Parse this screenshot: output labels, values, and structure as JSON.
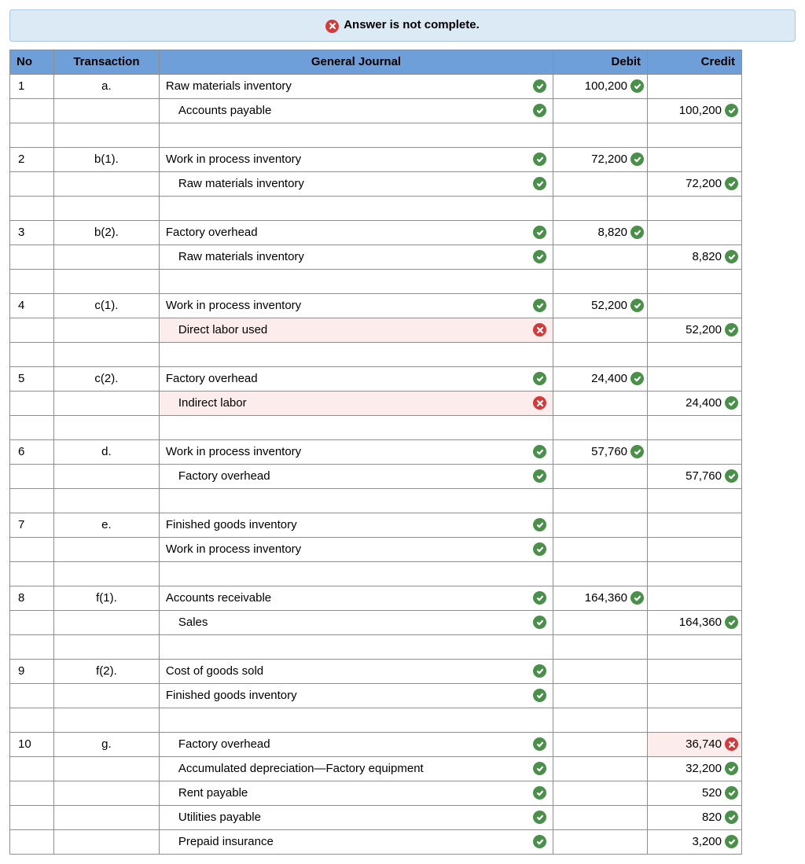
{
  "banner": {
    "text": "Answer is not complete."
  },
  "headers": {
    "no": "No",
    "transaction": "Transaction",
    "gj": "General Journal",
    "debit": "Debit",
    "credit": "Credit"
  },
  "colors": {
    "banner_bg": "#dceaf5",
    "banner_border": "#a9c7dd",
    "header_bg": "#6f9fd8",
    "cell_border": "#8f8f8f",
    "check_bg": "#4a8f4a",
    "x_bg": "#d23b3b",
    "error_bg": "#fdecec"
  },
  "rows": [
    {
      "no": "1",
      "trans": "a.",
      "gj": "Raw materials inventory",
      "indent": 0,
      "gjIcon": "check",
      "debit": "100,200",
      "debitIcon": "check",
      "credit": "",
      "creditIcon": ""
    },
    {
      "no": "",
      "trans": "",
      "gj": "Accounts payable",
      "indent": 1,
      "gjIcon": "check",
      "debit": "",
      "debitIcon": "",
      "credit": "100,200",
      "creditIcon": "check"
    },
    {
      "no": "",
      "trans": "",
      "gj": "",
      "indent": 0,
      "gjIcon": "",
      "debit": "",
      "debitIcon": "",
      "credit": "",
      "creditIcon": ""
    },
    {
      "no": "2",
      "trans": "b(1).",
      "gj": "Work in process inventory",
      "indent": 0,
      "gjIcon": "check",
      "debit": "72,200",
      "debitIcon": "check",
      "credit": "",
      "creditIcon": ""
    },
    {
      "no": "",
      "trans": "",
      "gj": "Raw materials inventory",
      "indent": 1,
      "gjIcon": "check",
      "debit": "",
      "debitIcon": "",
      "credit": "72,200",
      "creditIcon": "check"
    },
    {
      "no": "",
      "trans": "",
      "gj": "",
      "indent": 0,
      "gjIcon": "",
      "debit": "",
      "debitIcon": "",
      "credit": "",
      "creditIcon": ""
    },
    {
      "no": "3",
      "trans": "b(2).",
      "gj": "Factory overhead",
      "indent": 0,
      "gjIcon": "check",
      "debit": "8,820",
      "debitIcon": "check",
      "credit": "",
      "creditIcon": ""
    },
    {
      "no": "",
      "trans": "",
      "gj": "Raw materials inventory",
      "indent": 1,
      "gjIcon": "check",
      "debit": "",
      "debitIcon": "",
      "credit": "8,820",
      "creditIcon": "check"
    },
    {
      "no": "",
      "trans": "",
      "gj": "",
      "indent": 0,
      "gjIcon": "",
      "debit": "",
      "debitIcon": "",
      "credit": "",
      "creditIcon": ""
    },
    {
      "no": "4",
      "trans": "c(1).",
      "gj": "Work in process inventory",
      "indent": 0,
      "gjIcon": "check",
      "debit": "52,200",
      "debitIcon": "check",
      "credit": "",
      "creditIcon": ""
    },
    {
      "no": "",
      "trans": "",
      "gj": "Direct labor used",
      "indent": 1,
      "gjIcon": "x",
      "gjError": true,
      "debit": "",
      "debitIcon": "",
      "credit": "52,200",
      "creditIcon": "check"
    },
    {
      "no": "",
      "trans": "",
      "gj": "",
      "indent": 0,
      "gjIcon": "",
      "debit": "",
      "debitIcon": "",
      "credit": "",
      "creditIcon": ""
    },
    {
      "no": "5",
      "trans": "c(2).",
      "gj": "Factory overhead",
      "indent": 0,
      "gjIcon": "check",
      "debit": "24,400",
      "debitIcon": "check",
      "credit": "",
      "creditIcon": ""
    },
    {
      "no": "",
      "trans": "",
      "gj": "Indirect labor",
      "indent": 1,
      "gjIcon": "x",
      "gjError": true,
      "debit": "",
      "debitIcon": "",
      "credit": "24,400",
      "creditIcon": "check"
    },
    {
      "no": "",
      "trans": "",
      "gj": "",
      "indent": 0,
      "gjIcon": "",
      "debit": "",
      "debitIcon": "",
      "credit": "",
      "creditIcon": ""
    },
    {
      "no": "6",
      "trans": "d.",
      "gj": "Work in process inventory",
      "indent": 0,
      "gjIcon": "check",
      "debit": "57,760",
      "debitIcon": "check",
      "credit": "",
      "creditIcon": ""
    },
    {
      "no": "",
      "trans": "",
      "gj": "Factory overhead",
      "indent": 1,
      "gjIcon": "check",
      "debit": "",
      "debitIcon": "",
      "credit": "57,760",
      "creditIcon": "check"
    },
    {
      "no": "",
      "trans": "",
      "gj": "",
      "indent": 0,
      "gjIcon": "",
      "debit": "",
      "debitIcon": "",
      "credit": "",
      "creditIcon": ""
    },
    {
      "no": "7",
      "trans": "e.",
      "gj": "Finished goods inventory",
      "indent": 0,
      "gjIcon": "check",
      "debit": "",
      "debitIcon": "",
      "credit": "",
      "creditIcon": ""
    },
    {
      "no": "",
      "trans": "",
      "gj": "Work in process inventory",
      "indent": 0,
      "gjIcon": "check",
      "debit": "",
      "debitIcon": "",
      "credit": "",
      "creditIcon": ""
    },
    {
      "no": "",
      "trans": "",
      "gj": "",
      "indent": 0,
      "gjIcon": "",
      "debit": "",
      "debitIcon": "",
      "credit": "",
      "creditIcon": ""
    },
    {
      "no": "8",
      "trans": "f(1).",
      "gj": "Accounts receivable",
      "indent": 0,
      "gjIcon": "check",
      "debit": "164,360",
      "debitIcon": "check",
      "credit": "",
      "creditIcon": ""
    },
    {
      "no": "",
      "trans": "",
      "gj": "Sales",
      "indent": 1,
      "gjIcon": "check",
      "debit": "",
      "debitIcon": "",
      "credit": "164,360",
      "creditIcon": "check"
    },
    {
      "no": "",
      "trans": "",
      "gj": "",
      "indent": 0,
      "gjIcon": "",
      "debit": "",
      "debitIcon": "",
      "credit": "",
      "creditIcon": ""
    },
    {
      "no": "9",
      "trans": "f(2).",
      "gj": "Cost of goods sold",
      "indent": 0,
      "gjIcon": "check",
      "debit": "",
      "debitIcon": "",
      "credit": "",
      "creditIcon": ""
    },
    {
      "no": "",
      "trans": "",
      "gj": "Finished goods inventory",
      "indent": 0,
      "gjIcon": "check",
      "debit": "",
      "debitIcon": "",
      "credit": "",
      "creditIcon": ""
    },
    {
      "no": "",
      "trans": "",
      "gj": "",
      "indent": 0,
      "gjIcon": "",
      "debit": "",
      "debitIcon": "",
      "credit": "",
      "creditIcon": ""
    },
    {
      "no": "10",
      "trans": "g.",
      "gj": "Factory overhead",
      "indent": 1,
      "gjIcon": "check",
      "debit": "",
      "debitIcon": "",
      "credit": "36,740",
      "creditIcon": "x",
      "crError": true
    },
    {
      "no": "",
      "trans": "",
      "gj": "Accumulated depreciation—Factory equipment",
      "indent": 1,
      "gjIcon": "check",
      "debit": "",
      "debitIcon": "",
      "credit": "32,200",
      "creditIcon": "check"
    },
    {
      "no": "",
      "trans": "",
      "gj": "Rent payable",
      "indent": 1,
      "gjIcon": "check",
      "debit": "",
      "debitIcon": "",
      "credit": "520",
      "creditIcon": "check"
    },
    {
      "no": "",
      "trans": "",
      "gj": "Utilities payable",
      "indent": 1,
      "gjIcon": "check",
      "debit": "",
      "debitIcon": "",
      "credit": "820",
      "creditIcon": "check"
    },
    {
      "no": "",
      "trans": "",
      "gj": "Prepaid insurance",
      "indent": 1,
      "gjIcon": "check",
      "debit": "",
      "debitIcon": "",
      "credit": "3,200",
      "creditIcon": "check"
    }
  ]
}
